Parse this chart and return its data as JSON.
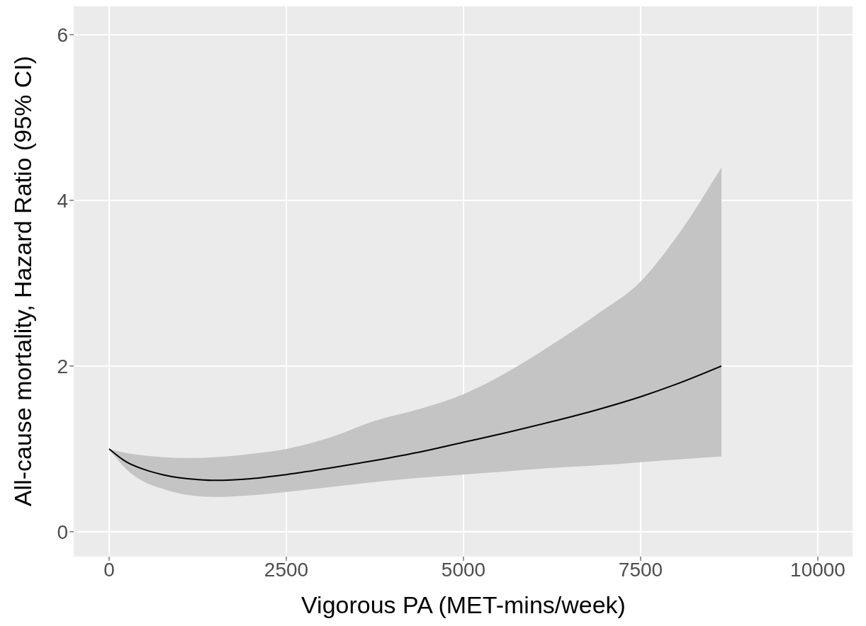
{
  "chart_data": {
    "type": "line",
    "xlabel": "Vigorous PA (MET-mins/week)",
    "ylabel": "All-cause mortality, Hazard Ratio (95% CI)",
    "x": [
      0,
      250,
      500,
      750,
      1000,
      1250,
      1500,
      2000,
      2500,
      3125,
      3750,
      4375,
      5000,
      5625,
      6250,
      6875,
      7500,
      8000,
      8640
    ],
    "series": [
      {
        "color": "#000000",
        "values": [
          1,
          0.84,
          0.75,
          0.69,
          0.65,
          0.63,
          0.62,
          0.64,
          0.69,
          0.77,
          0.86,
          0.96,
          1.08,
          1.2,
          1.33,
          1.47,
          1.63,
          1.78,
          2.0
        ],
        "lower": [
          1,
          0.75,
          0.6,
          0.52,
          0.46,
          0.43,
          0.42,
          0.44,
          0.48,
          0.54,
          0.6,
          0.65,
          0.69,
          0.73,
          0.77,
          0.8,
          0.84,
          0.87,
          0.91
        ],
        "upper": [
          1,
          0.95,
          0.92,
          0.9,
          0.89,
          0.89,
          0.9,
          0.94,
          1.0,
          1.14,
          1.34,
          1.48,
          1.66,
          1.93,
          2.26,
          2.62,
          3.02,
          3.55,
          4.4
        ]
      }
    ],
    "xlim": [
      -500,
      10500
    ],
    "xticks": [
      0,
      2500,
      5000,
      7500,
      10000
    ],
    "ylim": [
      -0.3,
      6.35
    ],
    "yticks": [
      0,
      2,
      4,
      6
    ],
    "grid": true,
    "marker": "none",
    "line_style": "solid"
  }
}
